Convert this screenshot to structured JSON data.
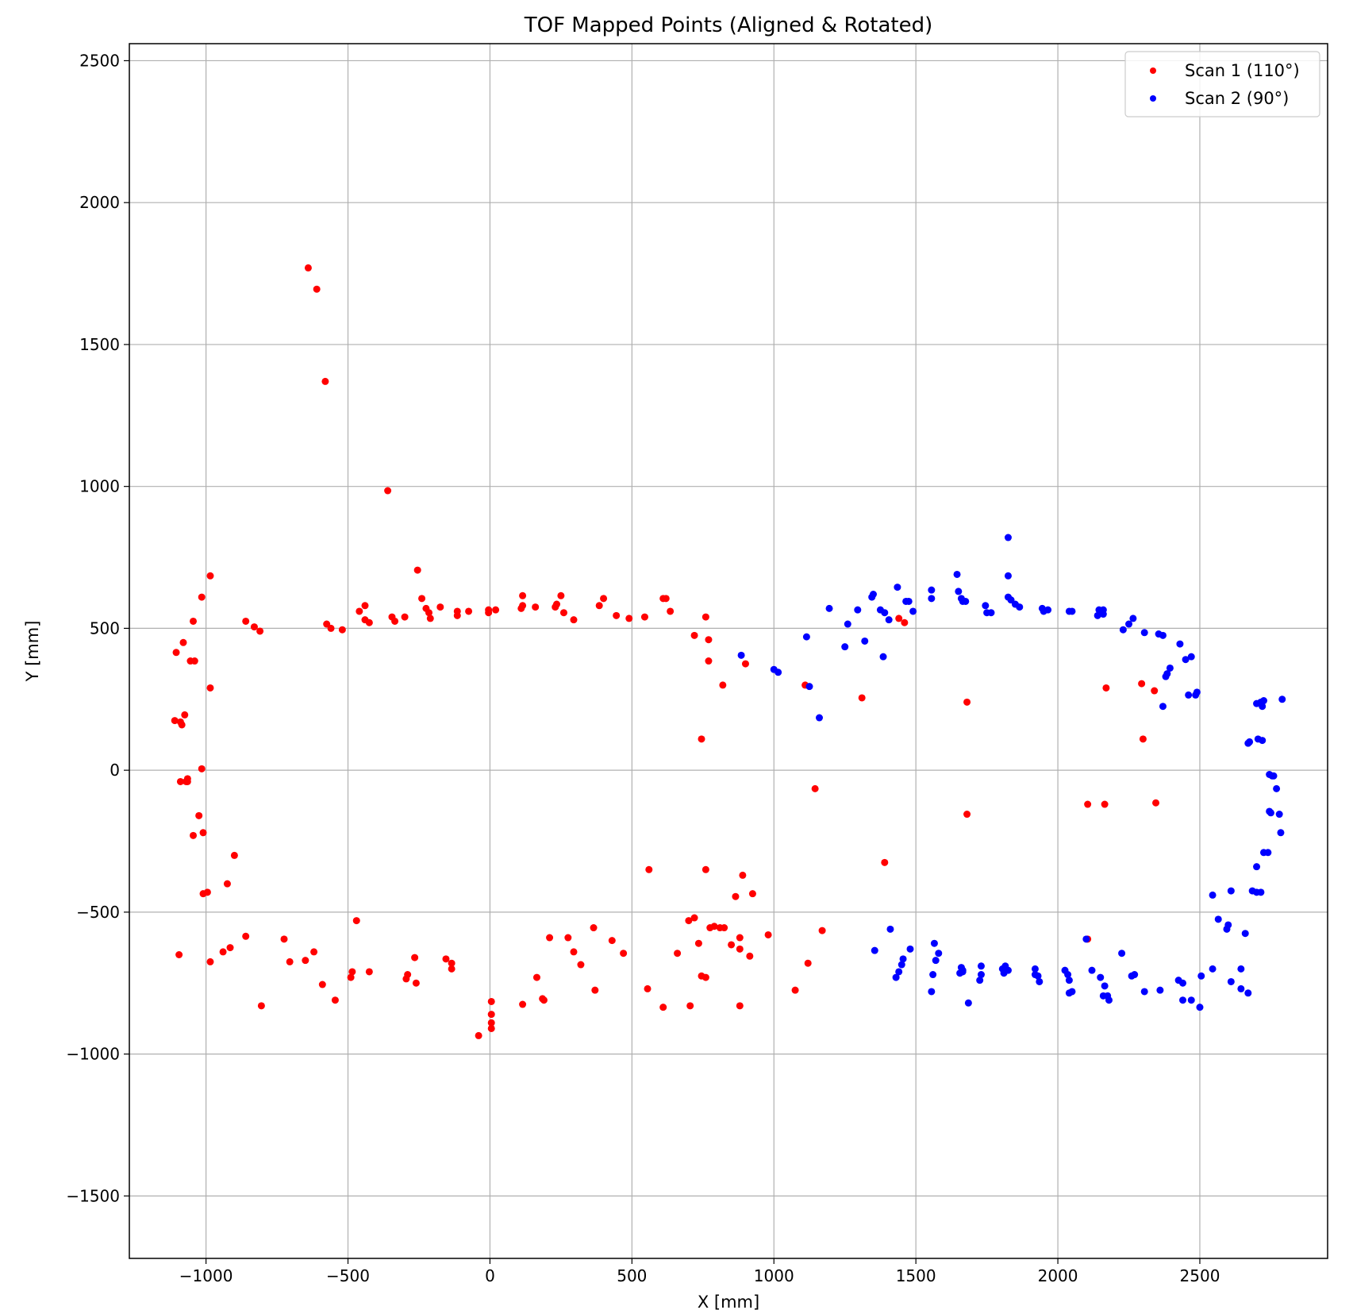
{
  "chart_data": {
    "type": "scatter",
    "title": "TOF Mapped Points (Aligned & Rotated)",
    "xlabel": "X [mm]",
    "ylabel": "Y [mm]",
    "xlim": [
      -1270,
      2950
    ],
    "ylim": [
      -1720,
      2560
    ],
    "xticks": [
      -1000,
      -500,
      0,
      500,
      1000,
      1500,
      2000,
      2500
    ],
    "yticks": [
      -1500,
      -1000,
      -500,
      0,
      500,
      1000,
      1500,
      2000,
      2500
    ],
    "xtick_labels": [
      "−1000",
      "−500",
      "0",
      "500",
      "1000",
      "1500",
      "2000",
      "2500"
    ],
    "ytick_labels": [
      "−1500",
      "−1000",
      "−500",
      "0",
      "500",
      "1000",
      "1500",
      "2000",
      "2500"
    ],
    "grid": true,
    "legend_position": "top-right",
    "series": [
      {
        "name": "Scan 1 (110°)",
        "color": "#ff0000",
        "points": [
          [
            -640,
            1770
          ],
          [
            -610,
            1695
          ],
          [
            -580,
            1370
          ],
          [
            -360,
            985
          ],
          [
            -985,
            685
          ],
          [
            -1015,
            610
          ],
          [
            -1045,
            525
          ],
          [
            -1080,
            450
          ],
          [
            -1105,
            415
          ],
          [
            -1055,
            385
          ],
          [
            -1040,
            385
          ],
          [
            -985,
            290
          ],
          [
            -1075,
            195
          ],
          [
            -1110,
            175
          ],
          [
            -1085,
            160
          ],
          [
            -1090,
            170
          ],
          [
            -1015,
            5
          ],
          [
            -1090,
            -40
          ],
          [
            -1070,
            -40
          ],
          [
            -1065,
            -30
          ],
          [
            -1065,
            -40
          ],
          [
            -1025,
            -160
          ],
          [
            -1010,
            -220
          ],
          [
            -1045,
            -230
          ],
          [
            -900,
            -300
          ],
          [
            -925,
            -400
          ],
          [
            -1010,
            -435
          ],
          [
            -995,
            -430
          ],
          [
            -985,
            -675
          ],
          [
            -1095,
            -650
          ],
          [
            -940,
            -640
          ],
          [
            -915,
            -625
          ],
          [
            -860,
            -585
          ],
          [
            -805,
            -830
          ],
          [
            -860,
            525
          ],
          [
            -830,
            505
          ],
          [
            -810,
            490
          ],
          [
            -575,
            515
          ],
          [
            -560,
            500
          ],
          [
            -520,
            495
          ],
          [
            -440,
            580
          ],
          [
            -460,
            560
          ],
          [
            -440,
            530
          ],
          [
            -425,
            520
          ],
          [
            -345,
            540
          ],
          [
            -335,
            525
          ],
          [
            -300,
            540
          ],
          [
            -255,
            705
          ],
          [
            -240,
            605
          ],
          [
            -225,
            570
          ],
          [
            -215,
            555
          ],
          [
            -210,
            535
          ],
          [
            -175,
            575
          ],
          [
            -115,
            560
          ],
          [
            -115,
            545
          ],
          [
            -75,
            560
          ],
          [
            -5,
            565
          ],
          [
            -5,
            555
          ],
          [
            20,
            565
          ],
          [
            110,
            570
          ],
          [
            115,
            580
          ],
          [
            115,
            615
          ],
          [
            160,
            575
          ],
          [
            230,
            575
          ],
          [
            235,
            585
          ],
          [
            250,
            615
          ],
          [
            260,
            555
          ],
          [
            295,
            530
          ],
          [
            385,
            580
          ],
          [
            400,
            605
          ],
          [
            445,
            545
          ],
          [
            490,
            535
          ],
          [
            545,
            540
          ],
          [
            610,
            605
          ],
          [
            620,
            605
          ],
          [
            635,
            560
          ],
          [
            720,
            475
          ],
          [
            760,
            540
          ],
          [
            770,
            460
          ],
          [
            770,
            385
          ],
          [
            820,
            300
          ],
          [
            900,
            375
          ],
          [
            745,
            110
          ],
          [
            1110,
            300
          ],
          [
            1145,
            -65
          ],
          [
            1310,
            255
          ],
          [
            1440,
            535
          ],
          [
            1460,
            520
          ],
          [
            1680,
            240
          ],
          [
            1680,
            -155
          ],
          [
            1390,
            -325
          ],
          [
            2105,
            -120
          ],
          [
            2165,
            -120
          ],
          [
            2170,
            290
          ],
          [
            2295,
            305
          ],
          [
            2300,
            110
          ],
          [
            2340,
            280
          ],
          [
            2345,
            -115
          ],
          [
            2105,
            -595
          ],
          [
            -725,
            -595
          ],
          [
            -705,
            -675
          ],
          [
            -650,
            -670
          ],
          [
            -620,
            -640
          ],
          [
            -590,
            -755
          ],
          [
            -545,
            -810
          ],
          [
            -490,
            -730
          ],
          [
            -485,
            -710
          ],
          [
            -470,
            -530
          ],
          [
            -425,
            -710
          ],
          [
            -295,
            -735
          ],
          [
            -290,
            -720
          ],
          [
            -265,
            -660
          ],
          [
            -260,
            -750
          ],
          [
            -155,
            -665
          ],
          [
            -135,
            -680
          ],
          [
            -135,
            -700
          ],
          [
            -40,
            -935
          ],
          [
            5,
            -815
          ],
          [
            5,
            -860
          ],
          [
            5,
            -890
          ],
          [
            5,
            -910
          ],
          [
            115,
            -825
          ],
          [
            165,
            -730
          ],
          [
            185,
            -805
          ],
          [
            190,
            -810
          ],
          [
            210,
            -590
          ],
          [
            275,
            -590
          ],
          [
            295,
            -640
          ],
          [
            320,
            -685
          ],
          [
            365,
            -555
          ],
          [
            370,
            -775
          ],
          [
            430,
            -600
          ],
          [
            470,
            -645
          ],
          [
            555,
            -770
          ],
          [
            560,
            -350
          ],
          [
            610,
            -835
          ],
          [
            660,
            -645
          ],
          [
            700,
            -530
          ],
          [
            705,
            -830
          ],
          [
            720,
            -520
          ],
          [
            735,
            -610
          ],
          [
            745,
            -725
          ],
          [
            760,
            -730
          ],
          [
            760,
            -350
          ],
          [
            775,
            -555
          ],
          [
            790,
            -550
          ],
          [
            810,
            -555
          ],
          [
            825,
            -555
          ],
          [
            850,
            -615
          ],
          [
            865,
            -445
          ],
          [
            880,
            -630
          ],
          [
            880,
            -590
          ],
          [
            880,
            -830
          ],
          [
            890,
            -370
          ],
          [
            915,
            -655
          ],
          [
            925,
            -435
          ],
          [
            980,
            -580
          ],
          [
            1075,
            -775
          ],
          [
            1120,
            -680
          ],
          [
            1170,
            -565
          ]
        ]
      },
      {
        "name": "Scan 2 (90°)",
        "color": "#0000ff",
        "points": [
          [
            885,
            405
          ],
          [
            1000,
            355
          ],
          [
            1015,
            345
          ],
          [
            1115,
            470
          ],
          [
            1125,
            295
          ],
          [
            1160,
            185
          ],
          [
            1195,
            570
          ],
          [
            1250,
            435
          ],
          [
            1260,
            515
          ],
          [
            1295,
            565
          ],
          [
            1320,
            455
          ],
          [
            1345,
            610
          ],
          [
            1350,
            620
          ],
          [
            1375,
            565
          ],
          [
            1385,
            400
          ],
          [
            1390,
            555
          ],
          [
            1405,
            530
          ],
          [
            1435,
            645
          ],
          [
            1465,
            595
          ],
          [
            1475,
            595
          ],
          [
            1490,
            560
          ],
          [
            1555,
            635
          ],
          [
            1555,
            605
          ],
          [
            1645,
            690
          ],
          [
            1650,
            630
          ],
          [
            1660,
            605
          ],
          [
            1665,
            595
          ],
          [
            1675,
            595
          ],
          [
            1745,
            580
          ],
          [
            1750,
            555
          ],
          [
            1765,
            555
          ],
          [
            1825,
            820
          ],
          [
            1825,
            685
          ],
          [
            1825,
            610
          ],
          [
            1835,
            600
          ],
          [
            1850,
            585
          ],
          [
            1865,
            575
          ],
          [
            1945,
            570
          ],
          [
            1950,
            560
          ],
          [
            1965,
            565
          ],
          [
            2040,
            560
          ],
          [
            2050,
            560
          ],
          [
            2140,
            545
          ],
          [
            2145,
            565
          ],
          [
            2160,
            565
          ],
          [
            2160,
            550
          ],
          [
            2230,
            495
          ],
          [
            2250,
            515
          ],
          [
            2265,
            535
          ],
          [
            2305,
            485
          ],
          [
            2355,
            480
          ],
          [
            2370,
            475
          ],
          [
            2370,
            225
          ],
          [
            2380,
            330
          ],
          [
            2385,
            340
          ],
          [
            2395,
            360
          ],
          [
            2430,
            445
          ],
          [
            2450,
            390
          ],
          [
            2460,
            265
          ],
          [
            2470,
            400
          ],
          [
            2485,
            265
          ],
          [
            2490,
            275
          ],
          [
            2700,
            235
          ],
          [
            2715,
            240
          ],
          [
            2720,
            225
          ],
          [
            2725,
            245
          ],
          [
            2790,
            250
          ],
          [
            2670,
            95
          ],
          [
            2675,
            100
          ],
          [
            2705,
            110
          ],
          [
            2720,
            105
          ],
          [
            2745,
            -15
          ],
          [
            2755,
            -20
          ],
          [
            2760,
            -20
          ],
          [
            2770,
            -65
          ],
          [
            2780,
            -155
          ],
          [
            2745,
            -145
          ],
          [
            2750,
            -150
          ],
          [
            2725,
            -290
          ],
          [
            2740,
            -290
          ],
          [
            2700,
            -340
          ],
          [
            2685,
            -425
          ],
          [
            2700,
            -430
          ],
          [
            2715,
            -430
          ],
          [
            2785,
            -220
          ],
          [
            2545,
            -440
          ],
          [
            2565,
            -525
          ],
          [
            2595,
            -560
          ],
          [
            2600,
            -545
          ],
          [
            2610,
            -425
          ],
          [
            2660,
            -575
          ],
          [
            2645,
            -700
          ],
          [
            2670,
            -785
          ],
          [
            2645,
            -770
          ],
          [
            2610,
            -745
          ],
          [
            2545,
            -700
          ],
          [
            2505,
            -725
          ],
          [
            2500,
            -835
          ],
          [
            2470,
            -810
          ],
          [
            2440,
            -750
          ],
          [
            2425,
            -740
          ],
          [
            2440,
            -810
          ],
          [
            2360,
            -775
          ],
          [
            2305,
            -780
          ],
          [
            2260,
            -725
          ],
          [
            2270,
            -720
          ],
          [
            2225,
            -645
          ],
          [
            2150,
            -730
          ],
          [
            2165,
            -760
          ],
          [
            2160,
            -795
          ],
          [
            2175,
            -795
          ],
          [
            2180,
            -810
          ],
          [
            2120,
            -705
          ],
          [
            2100,
            -595
          ],
          [
            2035,
            -720
          ],
          [
            2040,
            -740
          ],
          [
            2050,
            -780
          ],
          [
            2040,
            -785
          ],
          [
            2025,
            -705
          ],
          [
            1935,
            -745
          ],
          [
            1930,
            -725
          ],
          [
            1920,
            -700
          ],
          [
            1920,
            -720
          ],
          [
            1825,
            -705
          ],
          [
            1815,
            -690
          ],
          [
            1810,
            -715
          ],
          [
            1805,
            -700
          ],
          [
            1725,
            -740
          ],
          [
            1730,
            -720
          ],
          [
            1730,
            -690
          ],
          [
            1685,
            -820
          ],
          [
            1665,
            -710
          ],
          [
            1665,
            -705
          ],
          [
            1660,
            -695
          ],
          [
            1655,
            -715
          ],
          [
            1570,
            -670
          ],
          [
            1580,
            -645
          ],
          [
            1565,
            -610
          ],
          [
            1560,
            -720
          ],
          [
            1555,
            -780
          ],
          [
            1480,
            -630
          ],
          [
            1455,
            -665
          ],
          [
            1450,
            -685
          ],
          [
            1440,
            -710
          ],
          [
            1430,
            -730
          ],
          [
            1410,
            -560
          ],
          [
            1355,
            -635
          ]
        ]
      }
    ]
  }
}
